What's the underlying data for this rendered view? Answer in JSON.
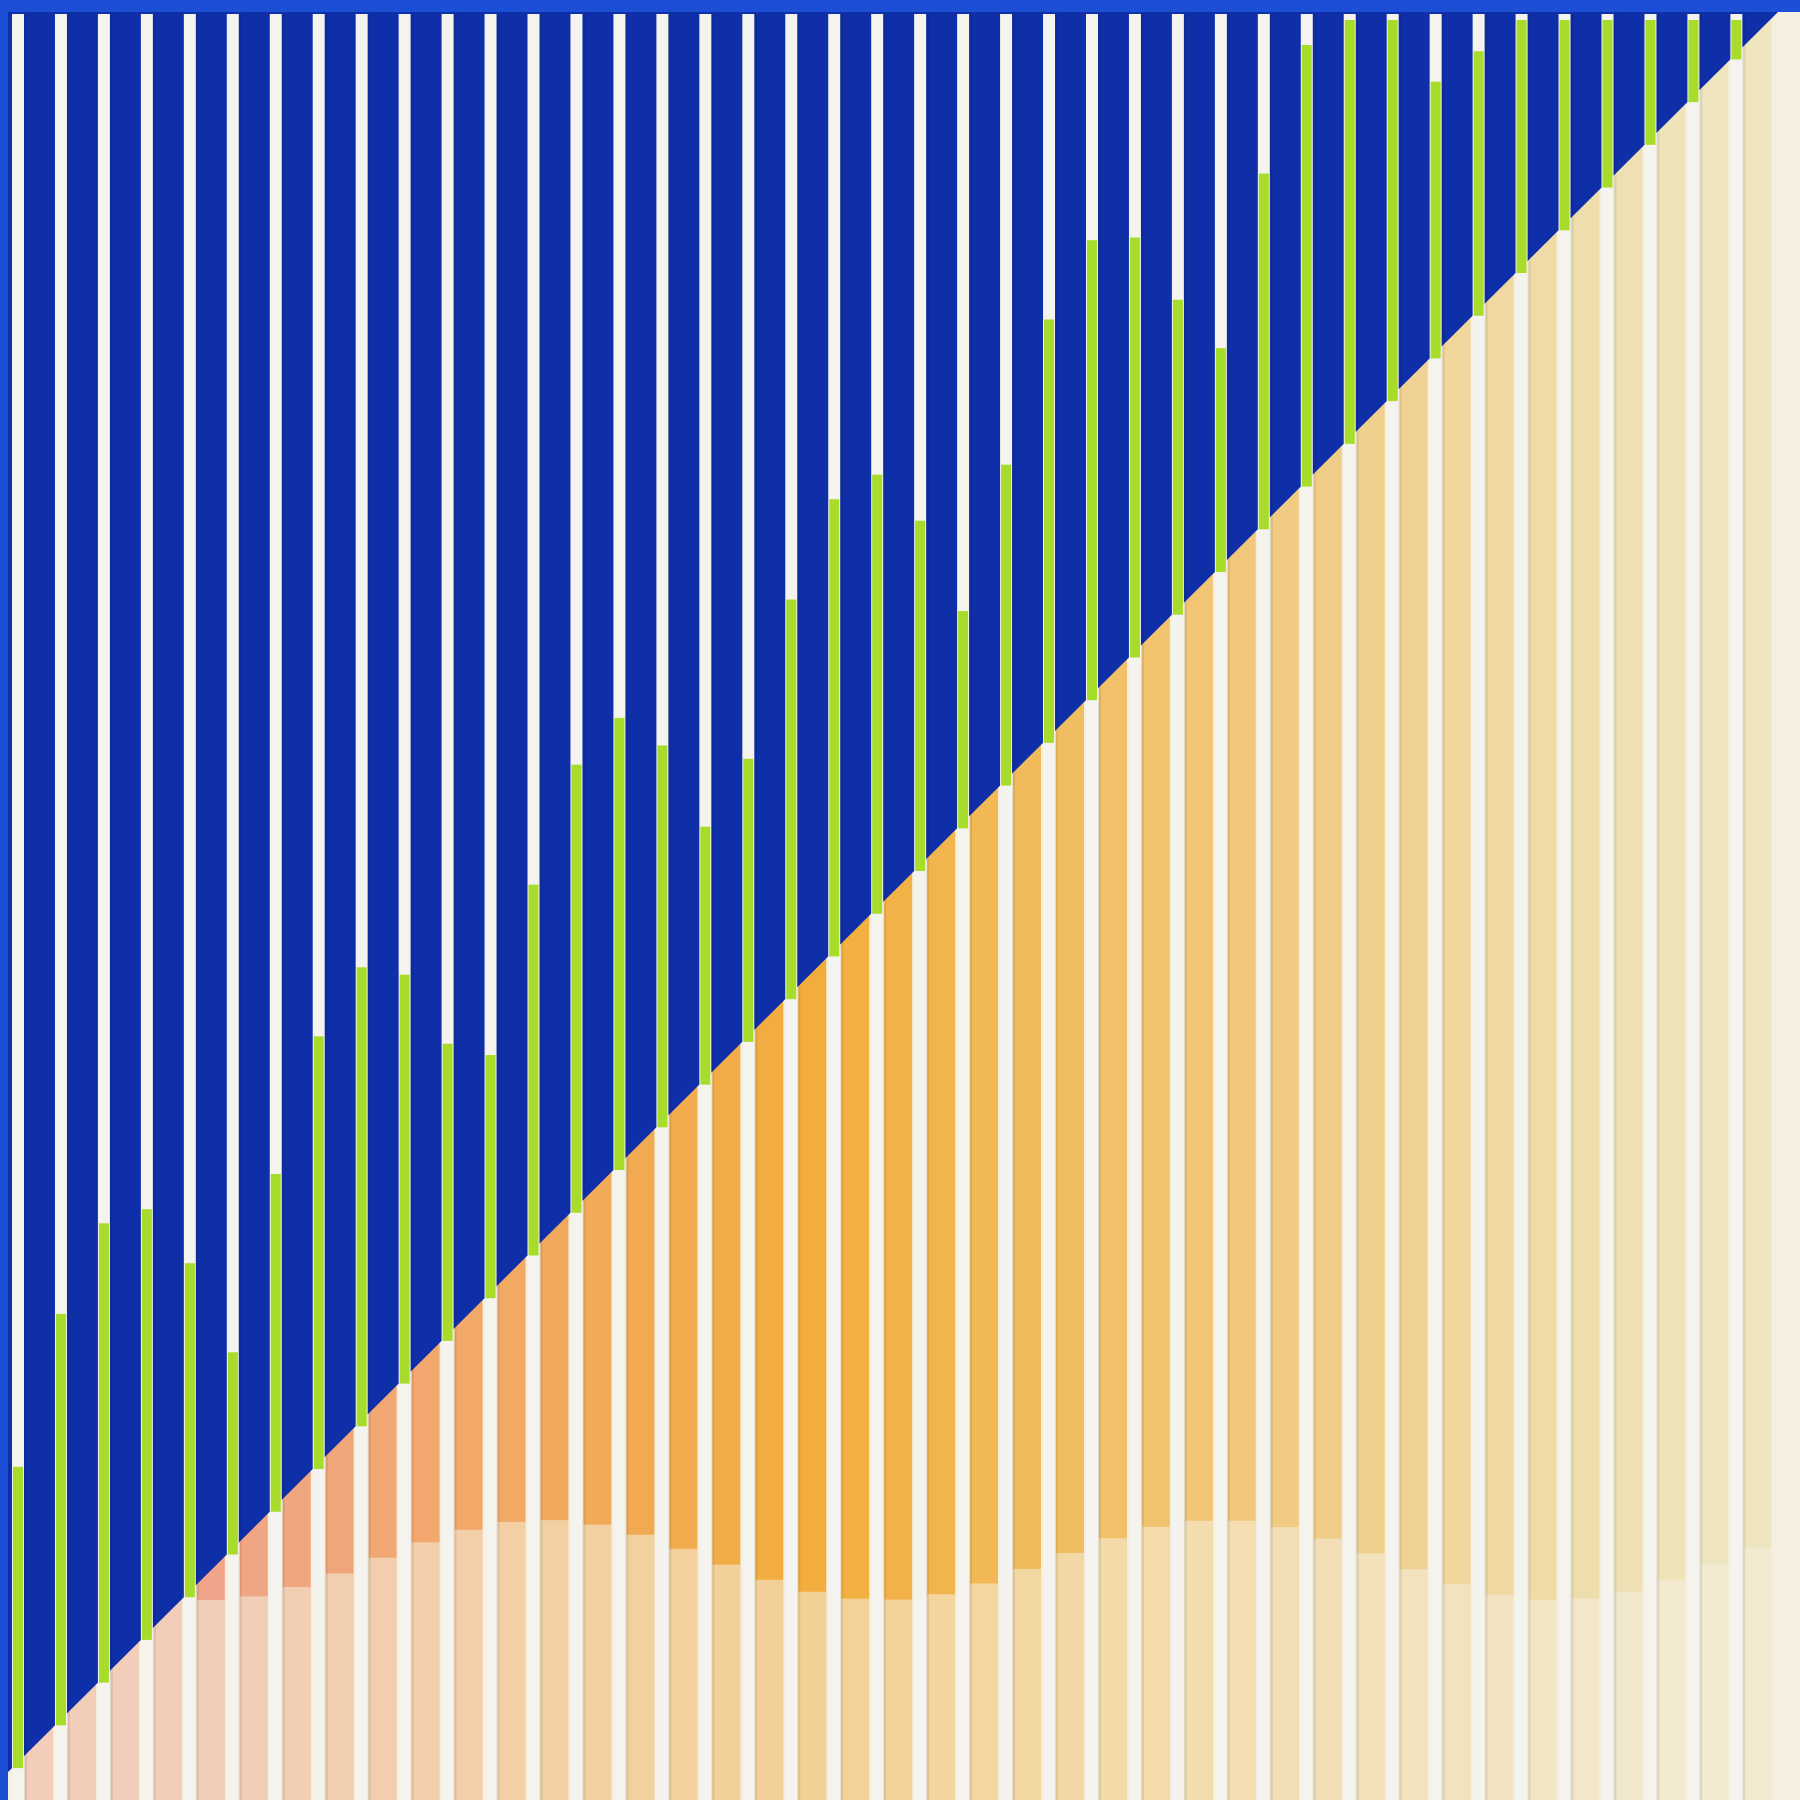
{
  "artwork": {
    "stripe_count": 41,
    "colors": {
      "frame_blue": "#1a4fd6",
      "deep_blue": "#0f2fa8",
      "stripe_white": "#f4f3ee",
      "accent_green": "#a8dc2a",
      "pink": "#f0a48c",
      "orange": "#f2ad3c",
      "pale_yellow": "#efe6c0",
      "cream": "#f4efdf"
    }
  }
}
